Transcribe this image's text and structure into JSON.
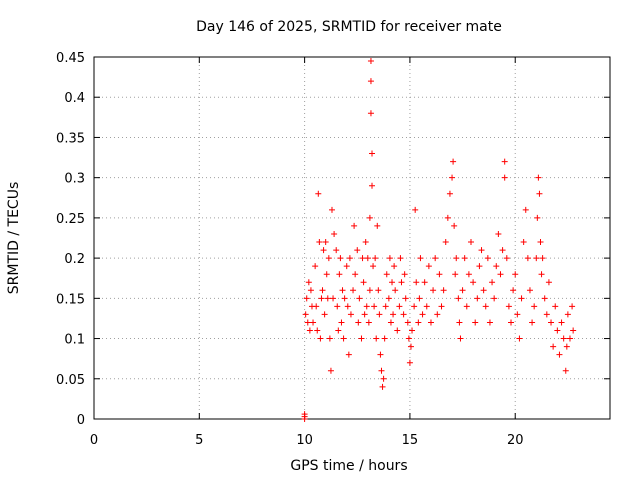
{
  "chart_data": {
    "type": "scatter",
    "title": "Day 146 of 2025, SRMTID for receiver mate",
    "xlabel": "GPS time / hours",
    "ylabel": "SRMTID / TECUs",
    "xlim": [
      0,
      24.5
    ],
    "ylim": [
      0,
      0.45
    ],
    "xticks": [
      0,
      5,
      10,
      15,
      20
    ],
    "xtick_labels": [
      "0",
      "5",
      "10",
      "15",
      "20"
    ],
    "yticks": [
      0,
      0.05,
      0.1,
      0.15,
      0.2,
      0.25,
      0.3,
      0.35,
      0.4,
      0.45
    ],
    "ytick_labels": [
      "0",
      "0.05",
      "0.1",
      "0.15",
      "0.2",
      "0.25",
      "0.3",
      "0.35",
      "0.4",
      "0.45"
    ],
    "grid": true,
    "marker": "+",
    "color": "#ff0000",
    "series": [
      {
        "name": "SRMTID",
        "x": [
          10.0,
          10.0,
          10.0,
          10.05,
          10.1,
          10.15,
          10.2,
          10.25,
          10.3,
          10.35,
          10.4,
          10.5,
          10.55,
          10.6,
          10.65,
          10.7,
          10.75,
          10.8,
          10.85,
          10.9,
          10.95,
          11.0,
          11.05,
          11.1,
          11.15,
          11.2,
          11.25,
          11.3,
          11.35,
          11.4,
          11.5,
          11.55,
          11.6,
          11.65,
          11.7,
          11.75,
          11.8,
          11.85,
          11.9,
          12.0,
          12.05,
          12.1,
          12.15,
          12.2,
          12.3,
          12.35,
          12.4,
          12.5,
          12.55,
          12.6,
          12.7,
          12.75,
          12.8,
          12.85,
          12.9,
          12.95,
          13.0,
          13.05,
          13.1,
          13.1,
          13.15,
          13.15,
          13.15,
          13.2,
          13.2,
          13.25,
          13.3,
          13.35,
          13.4,
          13.45,
          13.5,
          13.55,
          13.6,
          13.65,
          13.7,
          13.75,
          13.8,
          13.85,
          13.9,
          14.0,
          14.05,
          14.1,
          14.15,
          14.2,
          14.25,
          14.3,
          14.4,
          14.5,
          14.55,
          14.6,
          14.7,
          14.75,
          14.8,
          14.9,
          14.95,
          15.0,
          15.05,
          15.1,
          15.2,
          15.25,
          15.3,
          15.4,
          15.45,
          15.5,
          15.6,
          15.7,
          15.8,
          15.9,
          16.0,
          16.1,
          16.2,
          16.3,
          16.4,
          16.5,
          16.6,
          16.7,
          16.8,
          16.9,
          17.0,
          17.05,
          17.1,
          17.15,
          17.2,
          17.3,
          17.35,
          17.4,
          17.5,
          17.6,
          17.7,
          17.8,
          17.9,
          18.0,
          18.1,
          18.2,
          18.3,
          18.4,
          18.5,
          18.6,
          18.7,
          18.8,
          18.9,
          19.0,
          19.1,
          19.2,
          19.3,
          19.4,
          19.5,
          19.5,
          19.6,
          19.7,
          19.8,
          19.9,
          20.0,
          20.1,
          20.2,
          20.3,
          20.4,
          20.5,
          20.6,
          20.7,
          20.8,
          20.9,
          21.0,
          21.05,
          21.1,
          21.15,
          21.2,
          21.25,
          21.3,
          21.4,
          21.5,
          21.6,
          21.7,
          21.8,
          21.9,
          22.0,
          22.1,
          22.2,
          22.3,
          22.4,
          22.45,
          22.5,
          22.6,
          22.7,
          22.75
        ],
        "y": [
          0.0,
          0.003,
          0.006,
          0.13,
          0.15,
          0.12,
          0.17,
          0.11,
          0.16,
          0.14,
          0.12,
          0.19,
          0.14,
          0.11,
          0.28,
          0.22,
          0.1,
          0.15,
          0.16,
          0.21,
          0.13,
          0.22,
          0.18,
          0.15,
          0.2,
          0.1,
          0.06,
          0.26,
          0.15,
          0.23,
          0.21,
          0.14,
          0.11,
          0.18,
          0.2,
          0.12,
          0.16,
          0.1,
          0.15,
          0.19,
          0.14,
          0.08,
          0.2,
          0.13,
          0.16,
          0.24,
          0.18,
          0.21,
          0.12,
          0.15,
          0.1,
          0.2,
          0.17,
          0.13,
          0.22,
          0.14,
          0.2,
          0.12,
          0.16,
          0.25,
          0.38,
          0.42,
          0.445,
          0.33,
          0.29,
          0.19,
          0.14,
          0.2,
          0.1,
          0.24,
          0.16,
          0.13,
          0.08,
          0.06,
          0.04,
          0.05,
          0.1,
          0.14,
          0.18,
          0.15,
          0.2,
          0.12,
          0.17,
          0.13,
          0.19,
          0.16,
          0.11,
          0.14,
          0.2,
          0.17,
          0.13,
          0.18,
          0.15,
          0.12,
          0.1,
          0.07,
          0.09,
          0.11,
          0.14,
          0.26,
          0.17,
          0.12,
          0.15,
          0.2,
          0.13,
          0.17,
          0.14,
          0.19,
          0.12,
          0.16,
          0.2,
          0.13,
          0.18,
          0.14,
          0.16,
          0.22,
          0.25,
          0.28,
          0.3,
          0.32,
          0.24,
          0.18,
          0.2,
          0.15,
          0.12,
          0.1,
          0.16,
          0.2,
          0.14,
          0.18,
          0.22,
          0.17,
          0.12,
          0.15,
          0.19,
          0.21,
          0.16,
          0.14,
          0.2,
          0.12,
          0.17,
          0.15,
          0.19,
          0.23,
          0.18,
          0.21,
          0.32,
          0.3,
          0.2,
          0.14,
          0.12,
          0.16,
          0.18,
          0.13,
          0.1,
          0.15,
          0.22,
          0.26,
          0.2,
          0.16,
          0.12,
          0.14,
          0.2,
          0.25,
          0.3,
          0.28,
          0.22,
          0.18,
          0.2,
          0.15,
          0.13,
          0.17,
          0.12,
          0.09,
          0.14,
          0.11,
          0.08,
          0.12,
          0.1,
          0.06,
          0.09,
          0.13,
          0.1,
          0.14,
          0.11
        ]
      }
    ]
  }
}
